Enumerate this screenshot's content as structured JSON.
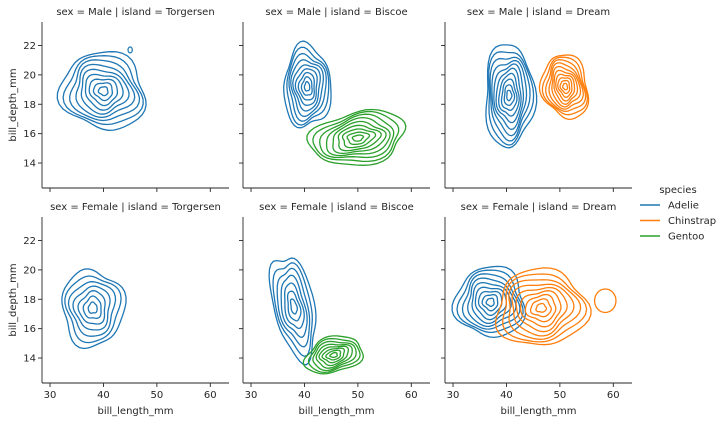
{
  "chart_data": {
    "type": "kde-contour",
    "xlabel": "bill_length_mm",
    "ylabel": "bill_depth_mm",
    "xlim": [
      28.5,
      63.5
    ],
    "ylim": [
      12.3,
      23.6
    ],
    "xticks": [
      30,
      40,
      50,
      60
    ],
    "yticks": [
      14,
      16,
      18,
      20,
      22
    ],
    "legend": {
      "title": "species",
      "position": "right",
      "entries": [
        {
          "name": "Adelie",
          "color": "#1f77b4"
        },
        {
          "name": "Chinstrap",
          "color": "#ff7f0e"
        },
        {
          "name": "Gentoo",
          "color": "#2ca02c"
        }
      ]
    },
    "panels": [
      {
        "title": "sex = Male | island = Torgersen",
        "row": 0,
        "col": 0,
        "clusters": [
          {
            "species": "Adelie",
            "cx": 40.0,
            "cy": 18.9,
            "rx": 8.0,
            "ry": 2.6,
            "tilt": -18,
            "levels": 9,
            "extra": [
              {
                "cx": 45.0,
                "cy": 21.7,
                "rx": 0.4,
                "ry": 0.2
              }
            ]
          }
        ]
      },
      {
        "title": "sex = Male | island = Biscoe",
        "row": 0,
        "col": 1,
        "clusters": [
          {
            "species": "Adelie",
            "cx": 40.5,
            "cy": 19.2,
            "rx": 4.4,
            "ry": 2.8,
            "tilt": 0,
            "levels": 9
          },
          {
            "species": "Gentoo",
            "cx": 50.0,
            "cy": 15.7,
            "rx": 9.0,
            "ry": 1.8,
            "tilt": 10,
            "levels": 9
          }
        ]
      },
      {
        "title": "sex = Male | island = Dream",
        "row": 0,
        "col": 2,
        "clusters": [
          {
            "species": "Adelie",
            "cx": 40.5,
            "cy": 18.6,
            "rx": 4.6,
            "ry": 3.5,
            "tilt": 0,
            "levels": 10
          },
          {
            "species": "Chinstrap",
            "cx": 51.0,
            "cy": 19.2,
            "rx": 4.3,
            "ry": 2.2,
            "tilt": 12,
            "levels": 10
          }
        ]
      },
      {
        "title": "sex = Female | island = Torgersen",
        "row": 1,
        "col": 0,
        "clusters": [
          {
            "species": "Adelie",
            "cx": 38.0,
            "cy": 17.4,
            "rx": 5.8,
            "ry": 2.6,
            "tilt": 0,
            "levels": 7
          }
        ]
      },
      {
        "title": "sex = Female | island = Biscoe",
        "row": 1,
        "col": 1,
        "clusters": [
          {
            "species": "Adelie",
            "cx": 38.0,
            "cy": 17.5,
            "rx": 3.8,
            "ry": 3.6,
            "tilt": 12,
            "levels": 7
          },
          {
            "species": "Gentoo",
            "cx": 45.5,
            "cy": 14.2,
            "rx": 5.5,
            "ry": 1.2,
            "tilt": 15,
            "levels": 8
          }
        ]
      },
      {
        "title": "sex = Female | island = Dream",
        "row": 1,
        "col": 2,
        "clusters": [
          {
            "species": "Adelie",
            "cx": 37.0,
            "cy": 17.8,
            "rx": 6.5,
            "ry": 2.4,
            "tilt": 35,
            "levels": 9
          },
          {
            "species": "Chinstrap",
            "cx": 46.5,
            "cy": 17.4,
            "rx": 8.5,
            "ry": 2.6,
            "tilt": 5,
            "levels": 9,
            "extra": [
              {
                "cx": 58.5,
                "cy": 17.9,
                "rx": 2.0,
                "ry": 0.8
              }
            ]
          }
        ]
      }
    ]
  }
}
